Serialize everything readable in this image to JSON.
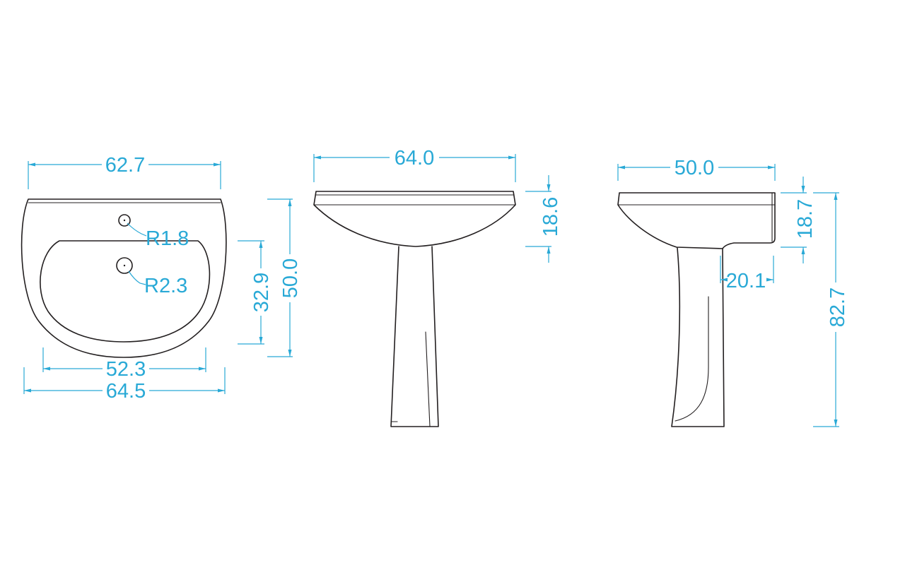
{
  "colors": {
    "object_line": "#231f20",
    "dimension": "#29a9d6",
    "background": "#ffffff"
  },
  "views": {
    "top": {
      "width_top": "62.7",
      "hole_small": "R1.8",
      "hole_large": "R2.3",
      "bowl_depth": "32.9",
      "total_depth": "50.0",
      "bowl_width": "52.3",
      "overall_width": "64.5"
    },
    "front": {
      "width": "64.0",
      "basin_height": "18.6"
    },
    "side": {
      "depth": "50.0",
      "basin_height": "18.7",
      "pedestal_offset": "20.1",
      "overall_height": "82.7"
    }
  }
}
